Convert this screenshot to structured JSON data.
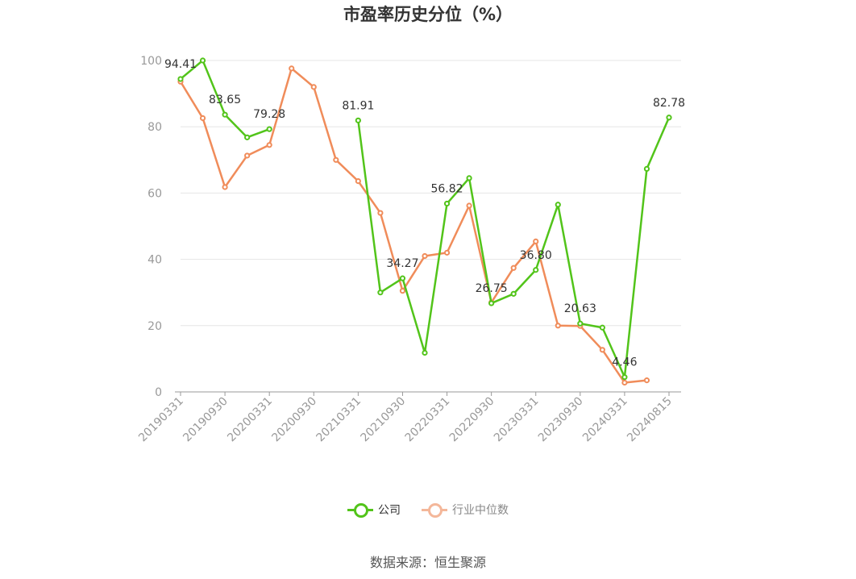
{
  "chart_data": {
    "type": "line",
    "title": "市盈率历史分位（%）",
    "xlabel": "",
    "ylabel": "",
    "ylim": [
      0,
      100
    ],
    "yticks": [
      0,
      20,
      40,
      60,
      80,
      100
    ],
    "grid": true,
    "legend_position": "bottom-center",
    "x": [
      "20190331",
      "20190630",
      "20190930",
      "20191231",
      "20200331",
      "20200630",
      "20200930",
      "20201231",
      "20210331",
      "20210630",
      "20210930",
      "20211231",
      "20220331",
      "20220630",
      "20220930",
      "20221231",
      "20230331",
      "20230630",
      "20230930",
      "20231231",
      "20240331",
      "20240630",
      "20240815"
    ],
    "x_tick_labels": [
      "20190331",
      "20190930",
      "20200331",
      "20200930",
      "20210331",
      "20210930",
      "20220331",
      "20220930",
      "20230331",
      "20230930",
      "20240331",
      "20240815"
    ],
    "series": [
      {
        "name": "公司",
        "color": "#52c41a",
        "values": [
          94.41,
          100,
          83.65,
          76.8,
          79.28,
          null,
          null,
          null,
          81.91,
          30.0,
          34.27,
          11.8,
          56.82,
          64.5,
          26.75,
          29.6,
          36.8,
          56.5,
          20.63,
          19.4,
          4.46,
          67.3,
          82.78
        ],
        "labels": {
          "0": "94.41",
          "2": "83.65",
          "4": "79.28",
          "8": "81.91",
          "10": "34.27",
          "12": "56.82",
          "14": "26.75",
          "16": "36.80",
          "18": "20.63",
          "20": "4.46",
          "22": "82.78"
        }
      },
      {
        "name": "行业中位数",
        "color": "#f08c5a",
        "values": [
          93.6,
          82.6,
          61.8,
          71.3,
          74.5,
          97.6,
          92.0,
          70.0,
          63.6,
          54.0,
          30.5,
          41.0,
          42.0,
          56.2,
          27.0,
          37.4,
          45.4,
          20.0,
          19.9,
          12.7,
          2.8,
          3.5,
          null
        ]
      }
    ]
  },
  "legend_colors": {
    "company_legend": "#52c41a",
    "industry_legend": "#f4b79a"
  },
  "source": "数据来源：恒生聚源"
}
